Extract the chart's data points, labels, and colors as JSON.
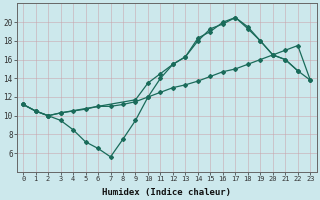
{
  "line1_x": [
    0,
    1,
    2,
    3,
    4,
    5,
    6,
    7,
    8,
    9,
    10,
    11,
    12,
    13,
    14,
    15,
    16,
    17,
    18,
    19,
    20,
    21,
    22
  ],
  "line1_y": [
    11.2,
    10.5,
    10.0,
    9.5,
    8.5,
    7.2,
    6.5,
    5.6,
    7.5,
    9.5,
    12.0,
    14.0,
    15.5,
    16.3,
    18.3,
    19.0,
    20.0,
    20.5,
    19.5,
    18.0,
    16.5,
    16.0,
    14.8
  ],
  "line2_x": [
    0,
    1,
    2,
    3,
    4,
    5,
    6,
    7,
    8,
    9,
    10,
    11,
    12,
    13,
    14,
    15,
    16,
    17,
    18,
    19,
    20,
    21,
    22,
    23
  ],
  "line2_y": [
    11.2,
    10.5,
    10.0,
    10.3,
    10.5,
    10.7,
    11.0,
    11.0,
    11.2,
    11.5,
    12.0,
    12.5,
    13.0,
    13.3,
    13.7,
    14.2,
    14.7,
    15.0,
    15.5,
    16.0,
    16.5,
    17.0,
    17.5,
    13.8
  ],
  "line3_x": [
    0,
    1,
    2,
    3,
    9,
    10,
    11,
    12,
    13,
    14,
    15,
    16,
    17,
    18,
    19,
    20,
    21,
    22,
    23
  ],
  "line3_y": [
    11.2,
    10.5,
    10.0,
    10.3,
    11.7,
    13.5,
    14.5,
    15.5,
    16.3,
    18.0,
    19.3,
    19.8,
    20.5,
    19.3,
    18.0,
    16.5,
    16.0,
    14.8,
    13.8
  ],
  "color": "#1a6b5a",
  "bg_color": "#cce8ec",
  "grid_color": "#b0d4d8",
  "xlabel": "Humidex (Indice chaleur)",
  "ylim": [
    4,
    22
  ],
  "xlim": [
    -0.5,
    23.5
  ],
  "yticks": [
    6,
    8,
    10,
    12,
    14,
    16,
    18,
    20
  ],
  "xticks": [
    0,
    1,
    2,
    3,
    4,
    5,
    6,
    7,
    8,
    9,
    10,
    11,
    12,
    13,
    14,
    15,
    16,
    17,
    18,
    19,
    20,
    21,
    22,
    23
  ]
}
